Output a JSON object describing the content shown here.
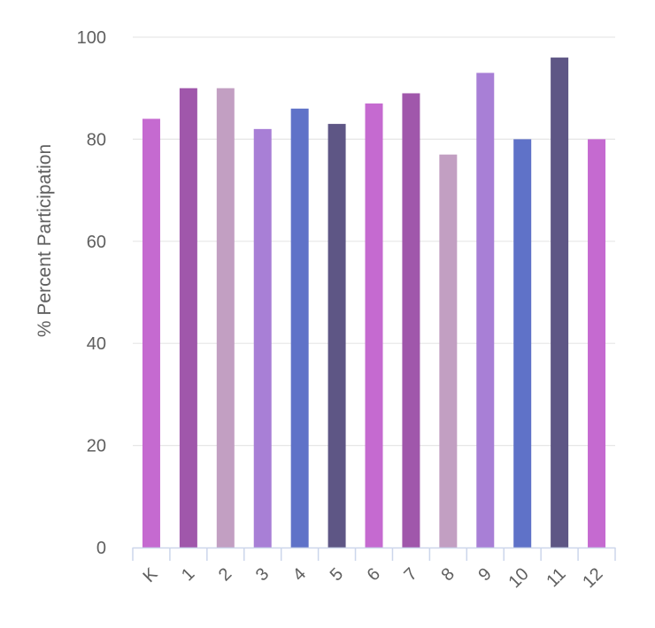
{
  "chart_data": {
    "type": "bar",
    "title": "",
    "xlabel": "",
    "ylabel": "% Percent Participation",
    "categories": [
      "K",
      "1",
      "2",
      "3",
      "4",
      "5",
      "6",
      "7",
      "8",
      "9",
      "10",
      "11",
      "12"
    ],
    "values": [
      84,
      90,
      90,
      82,
      86,
      83,
      87,
      89,
      77,
      93,
      80,
      96,
      80
    ],
    "colors": [
      "#c56ad0",
      "#a057ab",
      "#c29fc2",
      "#a87fd6",
      "#5f72c8",
      "#5e5685",
      "#c56ad0",
      "#a057ab",
      "#c29fc2",
      "#a87fd6",
      "#5f72c8",
      "#5e5685",
      "#c56ad0"
    ],
    "ylim": [
      0,
      100
    ],
    "yticks": [
      0,
      20,
      40,
      60,
      80,
      100
    ],
    "grid": true,
    "legend": false
  }
}
